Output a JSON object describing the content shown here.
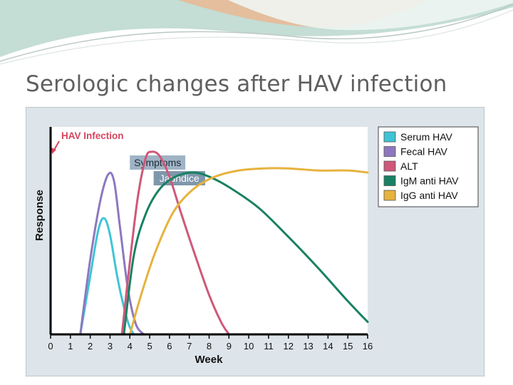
{
  "slide": {
    "title": "Serologic changes after HAV infection"
  },
  "colors": {
    "banner_teal": "#a9cfc4",
    "banner_peach": "#e8b08a",
    "title_text": "#5f5f5f",
    "figure_background": "#dde5ea",
    "annotation_red": "#d6455f",
    "symptoms_box": "#9fb3c5",
    "jaundice_box": "#7f97ab"
  },
  "chart_data": {
    "type": "line",
    "xlabel": "Week",
    "ylabel": "Response",
    "x_ticks": [
      0,
      1,
      2,
      3,
      4,
      5,
      6,
      7,
      8,
      9,
      10,
      11,
      12,
      13,
      14,
      15,
      16
    ],
    "xlim": [
      0,
      16
    ],
    "ylim": [
      0,
      100
    ],
    "grid": false,
    "legend_position": "top-right outside plot",
    "annotations": {
      "infection": {
        "label": "HAV Infection",
        "week": 0
      },
      "symptoms": {
        "label": "Symptoms",
        "start_week": 4,
        "end_week": 6.8
      },
      "jaundice": {
        "label": "Jaundice",
        "start_week": 5.2,
        "end_week": 7.8
      }
    },
    "series": [
      {
        "name": "Serum HAV",
        "color": "#3fc4d6",
        "x": [
          1.5,
          2.0,
          2.4,
          2.7,
          3.0,
          3.4,
          3.9,
          4.2
        ],
        "y": [
          0,
          28,
          50,
          56,
          48,
          26,
          6,
          0
        ]
      },
      {
        "name": "Fecal HAV",
        "color": "#8d78bf",
        "x": [
          1.5,
          2.0,
          2.5,
          2.9,
          3.2,
          3.5,
          3.9,
          4.3,
          4.7
        ],
        "y": [
          0,
          36,
          64,
          77,
          74,
          52,
          22,
          5,
          0
        ]
      },
      {
        "name": "ALT",
        "color": "#cf5879",
        "x": [
          3.6,
          4.0,
          4.4,
          4.8,
          5.1,
          5.5,
          6.0,
          6.6,
          7.3,
          8.0,
          8.6,
          9.0
        ],
        "y": [
          0,
          35,
          66,
          85,
          88,
          86,
          76,
          58,
          38,
          19,
          6,
          0
        ]
      },
      {
        "name": "IgM anti HAV",
        "color": "#198163",
        "x": [
          3.7,
          4.2,
          4.8,
          5.5,
          6.3,
          7.2,
          8.0,
          9.0,
          10.5,
          12.0,
          13.5,
          15.0,
          16.0
        ],
        "y": [
          0,
          38,
          58,
          70,
          76,
          78,
          76,
          71,
          61,
          47,
          32,
          16,
          6
        ]
      },
      {
        "name": "IgG anti HAV",
        "color": "#e6b33d",
        "x": [
          4.0,
          4.6,
          5.3,
          6.2,
          7.2,
          8.3,
          9.5,
          10.8,
          12.0,
          13.5,
          15.0,
          16.0
        ],
        "y": [
          0,
          20,
          40,
          59,
          70,
          76,
          79,
          80,
          80,
          79,
          79,
          78
        ]
      }
    ]
  }
}
